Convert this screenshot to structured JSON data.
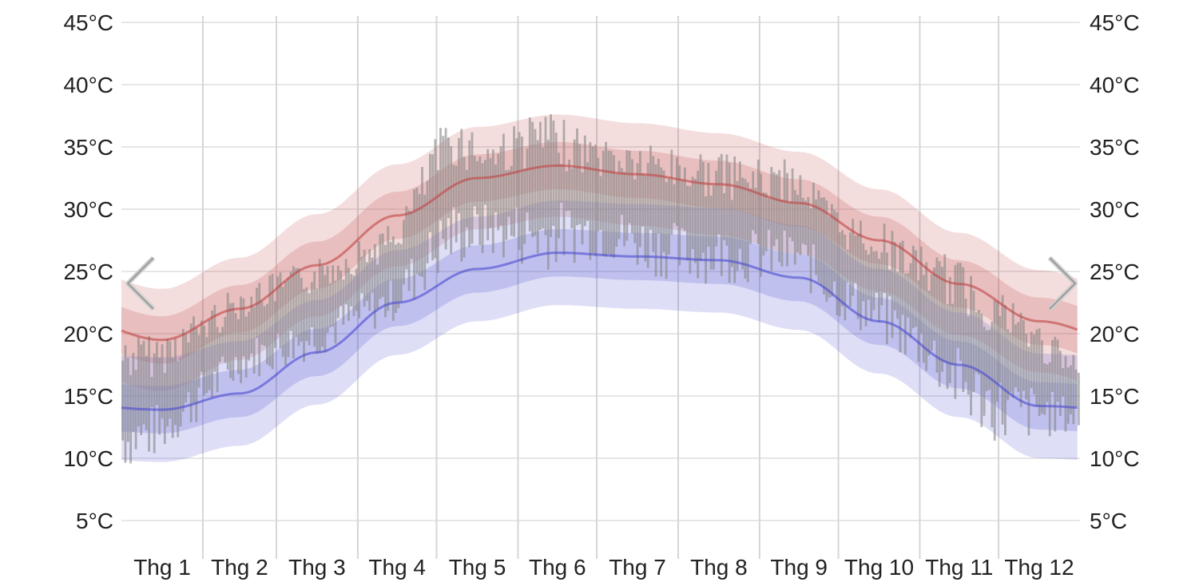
{
  "chart_data": {
    "type": "range-area-bar",
    "y_unit": "°C",
    "ylim": [
      2.5,
      46
    ],
    "y_ticks": [
      5,
      10,
      15,
      20,
      25,
      30,
      35,
      40,
      45
    ],
    "y_tick_labels": [
      "5°C",
      "10°C",
      "15°C",
      "20°C",
      "25°C",
      "30°C",
      "35°C",
      "40°C",
      "45°C"
    ],
    "grid": true,
    "months": [
      "Thg 1",
      "Thg 2",
      "Thg 3",
      "Thg 4",
      "Thg 5",
      "Thg 6",
      "Thg 7",
      "Thg 8",
      "Thg 9",
      "Thg 10",
      "Thg 11",
      "Thg 12"
    ],
    "month_lengths": [
      31,
      28,
      31,
      30,
      31,
      30,
      31,
      31,
      30,
      31,
      30,
      31
    ],
    "series": [
      {
        "key": "high",
        "color": "#c04545",
        "mean_by_month": [
          19.5,
          22.0,
          25.5,
          29.5,
          32.5,
          33.5,
          32.8,
          32.0,
          30.5,
          27.5,
          24.0,
          21.0
        ],
        "p25_p75_spread": 1.9,
        "p10_p90_spread": 4.1
      },
      {
        "key": "low",
        "color": "#4a4ad0",
        "mean_by_month": [
          13.9,
          15.2,
          18.5,
          22.5,
          25.2,
          26.5,
          26.2,
          25.9,
          24.5,
          21.0,
          17.5,
          14.2
        ],
        "p25_p75_spread": 1.9,
        "p10_p90_spread": 4.2
      }
    ],
    "daily_bars_color": "#888888",
    "daily_bars_description_note": "",
    "daily_bar_anchors": [
      {
        "day": 1,
        "min": 9,
        "max": 20
      },
      {
        "day": 15,
        "min": 10,
        "max": 20
      },
      {
        "day": 46,
        "min": 16,
        "max": 24
      },
      {
        "day": 74,
        "min": 18,
        "max": 26
      },
      {
        "day": 105,
        "min": 21,
        "max": 29
      },
      {
        "day": 125,
        "min": 25,
        "max": 38
      },
      {
        "day": 140,
        "min": 26,
        "max": 36
      },
      {
        "day": 160,
        "min": 25,
        "max": 38
      },
      {
        "day": 182,
        "min": 26,
        "max": 36
      },
      {
        "day": 213,
        "min": 24,
        "max": 35
      },
      {
        "day": 244,
        "min": 24,
        "max": 34
      },
      {
        "day": 258,
        "min": 24,
        "max": 34
      },
      {
        "day": 274,
        "min": 21,
        "max": 30
      },
      {
        "day": 290,
        "min": 19,
        "max": 29
      },
      {
        "day": 305,
        "min": 17,
        "max": 27
      },
      {
        "day": 320,
        "min": 13,
        "max": 26
      },
      {
        "day": 335,
        "min": 11,
        "max": 24
      },
      {
        "day": 365,
        "min": 12,
        "max": 18
      }
    ]
  },
  "nav": {
    "prev_icon": "chevron-left-icon",
    "next_icon": "chevron-right-icon",
    "arrow_color": "#bbbbbb"
  }
}
